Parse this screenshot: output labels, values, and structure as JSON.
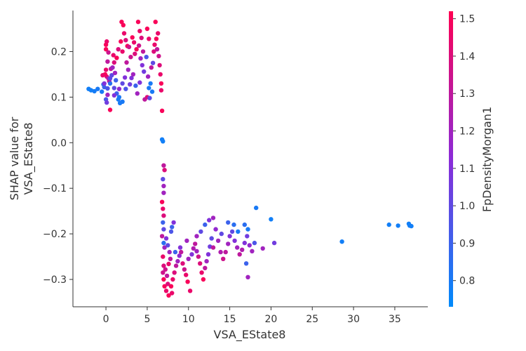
{
  "chart_data": {
    "type": "scatter",
    "title": "",
    "xlabel": "VSA_EState8",
    "ylabel_lines": [
      "SHAP value for",
      "VSA_EState8"
    ],
    "colorbar_label": "FpDensityMorgan1",
    "xlim": [
      -4,
      39
    ],
    "ylim": [
      -0.36,
      0.29
    ],
    "x_ticks": [
      0,
      5,
      10,
      15,
      20,
      25,
      30,
      35
    ],
    "y_ticks": [
      -0.3,
      -0.2,
      -0.1,
      0.0,
      0.1,
      0.2
    ],
    "y_tick_labels": [
      "−0.3",
      "−0.2",
      "−0.1",
      "0.0",
      "0.1",
      "0.2"
    ],
    "colorbar_range": [
      0.73,
      1.52
    ],
    "colorbar_ticks": [
      0.8,
      0.9,
      1.0,
      1.1,
      1.2,
      1.3,
      1.4,
      1.5
    ],
    "colors": {
      "low": "#008bfb",
      "mid": "#8b2bd8",
      "high": "#ff0052"
    },
    "points": [
      [
        -2.1,
        0.118,
        0.78
      ],
      [
        -1.8,
        0.115,
        0.78
      ],
      [
        -1.4,
        0.113,
        0.79
      ],
      [
        -1.0,
        0.118,
        0.8
      ],
      [
        -0.5,
        0.112,
        0.8
      ],
      [
        -0.3,
        0.128,
        0.85
      ],
      [
        -0.2,
        0.122,
        0.9
      ],
      [
        0.0,
        0.095,
        0.95
      ],
      [
        0.1,
        0.088,
        1.05
      ],
      [
        0.2,
        0.105,
        1.2
      ],
      [
        0.1,
        0.145,
        1.4
      ],
      [
        -0.1,
        0.15,
        1.5
      ],
      [
        0.0,
        0.16,
        1.45
      ],
      [
        0.2,
        0.178,
        1.3
      ],
      [
        0.0,
        0.215,
        1.5
      ],
      [
        0.0,
        0.205,
        1.5
      ],
      [
        0.1,
        0.222,
        1.45
      ],
      [
        0.3,
        0.198,
        1.35
      ],
      [
        0.5,
        0.072,
        1.5
      ],
      [
        0.4,
        0.135,
        1.3
      ],
      [
        0.6,
        0.162,
        1.3
      ],
      [
        0.3,
        0.141,
        1.25
      ],
      [
        -0.4,
        0.148,
        1.45
      ],
      [
        -0.2,
        0.13,
        1.1
      ],
      [
        0.2,
        0.119,
        0.95
      ],
      [
        0.5,
        0.13,
        0.85
      ],
      [
        0.7,
        0.148,
        1.0
      ],
      [
        0.8,
        0.165,
        1.2
      ],
      [
        1.0,
        0.12,
        1.0
      ],
      [
        1.2,
        0.137,
        0.9
      ],
      [
        1.5,
        0.095,
        0.8
      ],
      [
        1.7,
        0.087,
        0.8
      ],
      [
        2.0,
        0.09,
        0.8
      ],
      [
        1.6,
        0.1,
        0.8
      ],
      [
        1.3,
        0.108,
        0.9
      ],
      [
        1.1,
        0.153,
        1.2
      ],
      [
        1.0,
        0.176,
        1.4
      ],
      [
        0.9,
        0.192,
        1.45
      ],
      [
        1.3,
        0.186,
        1.5
      ],
      [
        1.5,
        0.205,
        1.4
      ],
      [
        1.8,
        0.222,
        1.5
      ],
      [
        1.9,
        0.265,
        1.5
      ],
      [
        2.1,
        0.258,
        1.5
      ],
      [
        2.2,
        0.24,
        1.45
      ],
      [
        2.4,
        0.225,
        1.4
      ],
      [
        2.0,
        0.2,
        1.45
      ],
      [
        2.6,
        0.212,
        1.5
      ],
      [
        2.8,
        0.21,
        1.35
      ],
      [
        2.5,
        0.176,
        1.3
      ],
      [
        2.7,
        0.16,
        1.2
      ],
      [
        2.3,
        0.143,
        1.1
      ],
      [
        2.0,
        0.13,
        1.0
      ],
      [
        1.6,
        0.118,
        1.15
      ],
      [
        2.9,
        0.128,
        1.05
      ],
      [
        3.1,
        0.142,
        1.1
      ],
      [
        3.3,
        0.15,
        1.2
      ],
      [
        3.0,
        0.188,
        1.35
      ],
      [
        3.5,
        0.195,
        1.4
      ],
      [
        3.7,
        0.205,
        1.5
      ],
      [
        3.4,
        0.22,
        1.45
      ],
      [
        3.2,
        0.231,
        1.5
      ],
      [
        3.9,
        0.265,
        1.5
      ],
      [
        4.1,
        0.245,
        1.45
      ],
      [
        4.3,
        0.23,
        1.4
      ],
      [
        4.0,
        0.213,
        1.35
      ],
      [
        4.5,
        0.2,
        1.3
      ],
      [
        4.2,
        0.185,
        1.2
      ],
      [
        4.4,
        0.17,
        1.1
      ],
      [
        4.6,
        0.156,
        1.05
      ],
      [
        4.1,
        0.132,
        1.1
      ],
      [
        3.8,
        0.108,
        1.2
      ],
      [
        4.7,
        0.095,
        1.3
      ],
      [
        5.0,
        0.1,
        1.4
      ],
      [
        5.2,
        0.12,
        0.8
      ],
      [
        5.4,
        0.13,
        0.8
      ],
      [
        5.6,
        0.112,
        0.8
      ],
      [
        5.3,
        0.098,
        1.0
      ],
      [
        5.1,
        0.145,
        1.2
      ],
      [
        5.5,
        0.165,
        1.3
      ],
      [
        5.7,
        0.175,
        1.0
      ],
      [
        4.9,
        0.188,
        0.95
      ],
      [
        5.8,
        0.2,
        1.4
      ],
      [
        5.9,
        0.215,
        1.45
      ],
      [
        6.1,
        0.228,
        1.5
      ],
      [
        6.3,
        0.24,
        1.45
      ],
      [
        6.0,
        0.265,
        1.5
      ],
      [
        6.2,
        0.205,
        1.3
      ],
      [
        6.4,
        0.19,
        1.35
      ],
      [
        6.5,
        0.17,
        1.4
      ],
      [
        6.6,
        0.15,
        1.45
      ],
      [
        6.7,
        0.13,
        1.5
      ],
      [
        6.7,
        0.115,
        1.45
      ],
      [
        6.8,
        0.07,
        1.5
      ],
      [
        5.0,
        0.25,
        1.5
      ],
      [
        5.2,
        0.228,
        1.45
      ],
      [
        3.6,
        0.125,
        0.9
      ],
      [
        2.4,
        0.118,
        0.95
      ],
      [
        1.0,
        0.104,
        1.1
      ],
      [
        0.5,
        0.141,
        1.0
      ],
      [
        6.9,
        0.003,
        0.78
      ],
      [
        6.8,
        0.007,
        0.78
      ],
      [
        7.0,
        -0.05,
        1.3
      ],
      [
        7.1,
        -0.06,
        1.4
      ],
      [
        6.9,
        -0.08,
        1.0
      ],
      [
        7.0,
        -0.095,
        1.2
      ],
      [
        7.0,
        -0.11,
        1.2
      ],
      [
        6.8,
        -0.13,
        1.5
      ],
      [
        6.9,
        -0.145,
        1.45
      ],
      [
        7.0,
        -0.16,
        1.4
      ],
      [
        6.9,
        -0.175,
        0.9
      ],
      [
        7.0,
        -0.19,
        1.0
      ],
      [
        6.8,
        -0.205,
        1.3
      ],
      [
        7.0,
        -0.22,
        0.85
      ],
      [
        7.1,
        -0.23,
        1.2
      ],
      [
        6.9,
        -0.25,
        1.45
      ],
      [
        7.0,
        -0.27,
        1.4
      ],
      [
        6.9,
        -0.285,
        1.35
      ],
      [
        7.0,
        -0.3,
        1.5
      ],
      [
        7.1,
        -0.315,
        1.5
      ],
      [
        7.3,
        -0.325,
        1.45
      ],
      [
        7.5,
        -0.31,
        1.4
      ],
      [
        7.4,
        -0.292,
        1.3
      ],
      [
        7.2,
        -0.278,
        1.35
      ],
      [
        7.6,
        -0.266,
        1.45
      ],
      [
        7.8,
        -0.255,
        1.3
      ],
      [
        7.7,
        -0.24,
        1.2
      ],
      [
        7.5,
        -0.225,
        1.0
      ],
      [
        7.3,
        -0.21,
        1.1
      ],
      [
        7.9,
        -0.195,
        0.95
      ],
      [
        8.0,
        -0.185,
        0.9
      ],
      [
        8.2,
        -0.175,
        1.1
      ],
      [
        7.6,
        -0.335,
        1.5
      ],
      [
        8.1,
        -0.3,
        1.45
      ],
      [
        8.3,
        -0.285,
        1.4
      ],
      [
        8.5,
        -0.27,
        1.3
      ],
      [
        8.7,
        -0.26,
        1.2
      ],
      [
        8.9,
        -0.248,
        1.15
      ],
      [
        9.1,
        -0.24,
        1.3
      ],
      [
        9.3,
        -0.265,
        1.4
      ],
      [
        9.5,
        -0.278,
        1.35
      ],
      [
        9.7,
        -0.29,
        1.45
      ],
      [
        9.9,
        -0.305,
        1.5
      ],
      [
        10.2,
        -0.325,
        1.45
      ],
      [
        10.0,
        -0.255,
        1.2
      ],
      [
        10.4,
        -0.245,
        1.1
      ],
      [
        10.6,
        -0.232,
        1.25
      ],
      [
        10.8,
        -0.222,
        1.3
      ],
      [
        11.0,
        -0.238,
        1.2
      ],
      [
        11.2,
        -0.25,
        1.35
      ],
      [
        11.4,
        -0.265,
        1.4
      ],
      [
        11.6,
        -0.285,
        1.45
      ],
      [
        11.8,
        -0.3,
        1.5
      ],
      [
        12.0,
        -0.275,
        1.3
      ],
      [
        12.2,
        -0.26,
        1.2
      ],
      [
        12.4,
        -0.245,
        1.1
      ],
      [
        12.6,
        -0.228,
        1.05
      ],
      [
        12.8,
        -0.21,
        1.0
      ],
      [
        11.0,
        -0.205,
        1.2
      ],
      [
        11.5,
        -0.195,
        1.0
      ],
      [
        12.0,
        -0.18,
        0.9
      ],
      [
        12.5,
        -0.17,
        1.1
      ],
      [
        13.0,
        -0.165,
        1.2
      ],
      [
        13.3,
        -0.19,
        1.15
      ],
      [
        13.6,
        -0.215,
        1.2
      ],
      [
        13.9,
        -0.24,
        1.25
      ],
      [
        14.2,
        -0.255,
        1.35
      ],
      [
        14.5,
        -0.24,
        1.3
      ],
      [
        14.8,
        -0.222,
        1.2
      ],
      [
        15.0,
        -0.205,
        1.1
      ],
      [
        15.3,
        -0.195,
        1.0
      ],
      [
        15.6,
        -0.215,
        1.1
      ],
      [
        15.9,
        -0.23,
        1.2
      ],
      [
        16.2,
        -0.245,
        1.3
      ],
      [
        16.5,
        -0.235,
        1.25
      ],
      [
        16.8,
        -0.22,
        1.1
      ],
      [
        17.1,
        -0.205,
        1.05
      ],
      [
        17.4,
        -0.225,
        1.15
      ],
      [
        17.7,
        -0.238,
        1.2
      ],
      [
        18.0,
        -0.22,
        0.95
      ],
      [
        14.8,
        -0.175,
        0.9
      ],
      [
        15.5,
        -0.18,
        0.85
      ],
      [
        16.0,
        -0.195,
        0.8
      ],
      [
        16.8,
        -0.18,
        0.85
      ],
      [
        17.2,
        -0.19,
        0.8
      ],
      [
        18.2,
        -0.143,
        0.8
      ],
      [
        19.0,
        -0.232,
        1.2
      ],
      [
        20.0,
        -0.168,
        0.78
      ],
      [
        20.4,
        -0.22,
        1.05
      ],
      [
        17.0,
        -0.265,
        0.9
      ],
      [
        17.2,
        -0.295,
        1.2
      ],
      [
        14.0,
        -0.2,
        1.0
      ],
      [
        13.0,
        -0.23,
        1.3
      ],
      [
        9.8,
        -0.215,
        1.2
      ],
      [
        9.0,
        -0.23,
        1.1
      ],
      [
        8.4,
        -0.24,
        0.9
      ],
      [
        7.9,
        -0.315,
        1.5
      ],
      [
        8.0,
        -0.33,
        1.45
      ],
      [
        28.6,
        -0.217,
        0.78
      ],
      [
        34.3,
        -0.18,
        0.78
      ],
      [
        35.4,
        -0.182,
        0.78
      ],
      [
        36.7,
        -0.178,
        0.78
      ],
      [
        37.0,
        -0.183,
        0.78
      ],
      [
        36.8,
        -0.182,
        0.78
      ]
    ]
  }
}
